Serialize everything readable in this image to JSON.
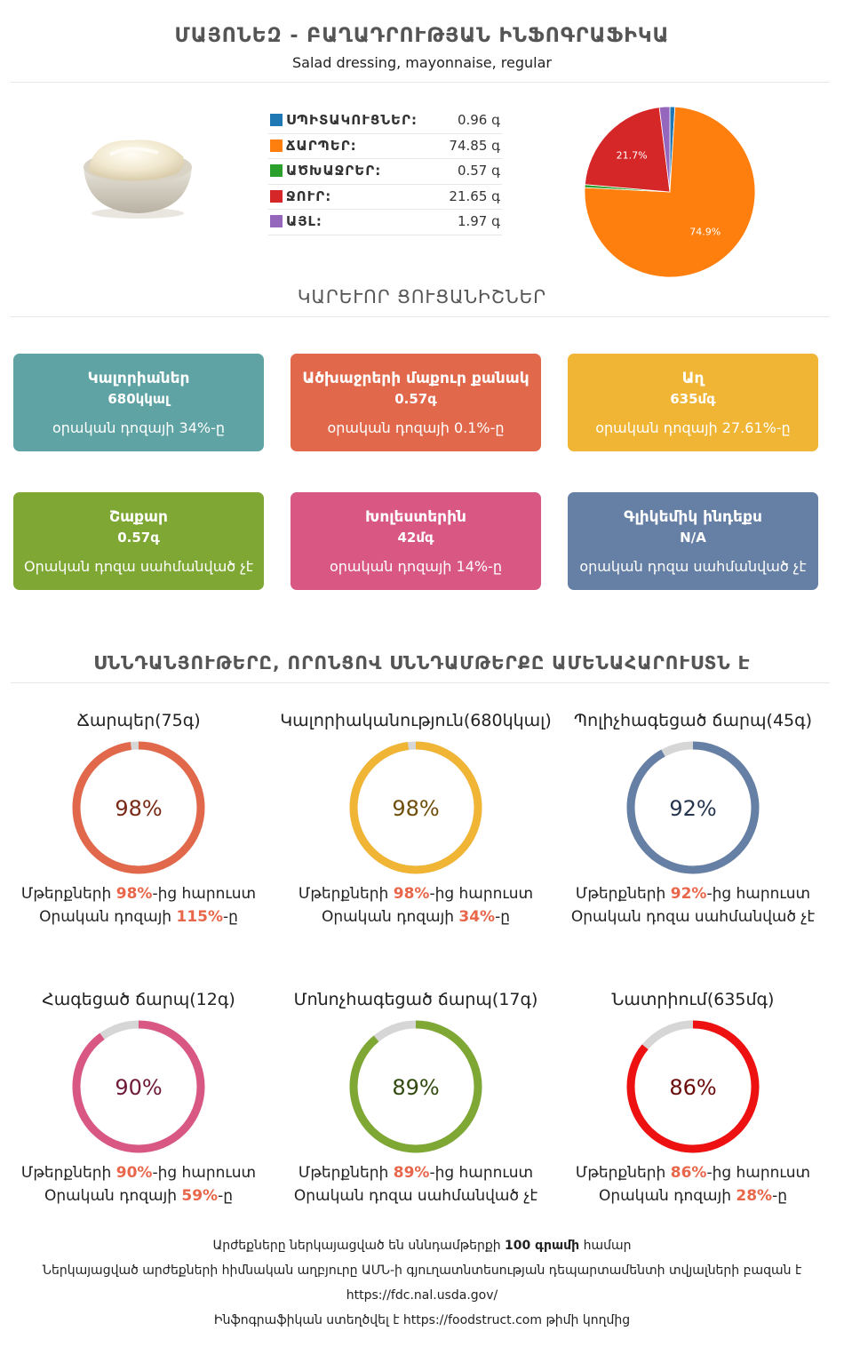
{
  "header": {
    "title": "ՄԱՅՈՆԵԶ - ԲԱՂԱԴՐՈՒԹՅԱՆ ԻՆՖՈԳՐԱՖԻԿԱ",
    "subtitle": "Salad dressing, mayonnaise, regular"
  },
  "macros": [
    {
      "label": "ՍՊԻՏԱԿՈՒՑՆԵՐ:",
      "value": "0.96 գ",
      "color": "#1f77b4"
    },
    {
      "label": "ՃԱՐՊԵՐ:",
      "value": "74.85 գ",
      "color": "#ff7f0e"
    },
    {
      "label": "ԱԾԽԱՋՐԵՐ:",
      "value": "0.57 գ",
      "color": "#2ca02c"
    },
    {
      "label": "ՋՈՒՐ:",
      "value": "21.65 գ",
      "color": "#d62728"
    },
    {
      "label": "ԱՅԼ:",
      "value": "1.97 գ",
      "color": "#9467bd"
    }
  ],
  "chart_data": {
    "type": "pie",
    "slices": [
      {
        "label": "ՍՊԻՏԱԿՈՒՑՆԵՐ",
        "value": 0.96,
        "color": "#1f77b4"
      },
      {
        "label": "ՃԱՐՊԵՐ",
        "value": 74.85,
        "color": "#ff7f0e",
        "display": "74.9%"
      },
      {
        "label": "ԱԾԽԱՋՐԵՐ",
        "value": 0.57,
        "color": "#2ca02c"
      },
      {
        "label": "ՋՈՒՐ",
        "value": 21.65,
        "color": "#d62728",
        "display": "21.7%"
      },
      {
        "label": "ԱՅԼ",
        "value": 1.97,
        "color": "#9467bd"
      }
    ]
  },
  "key_section_title": "ԿԱՐԵՒՈՐ ՑՈՒՑԱՆԻՇՆԵՐ",
  "cards": [
    {
      "title": "Կալորիաներ",
      "amount": "680կկալ",
      "note": "օրական դոզայի 34%-ը",
      "color": "#5fa3a4"
    },
    {
      "title": "Ածխաջրերի մաքուր քանակ",
      "amount": "0.57գ",
      "note": "օրական դոզայի 0.1%-ը",
      "color": "#e1684a"
    },
    {
      "title": "Աղ",
      "amount": "635մգ",
      "note": "օրական դոզայի 27.61%-ը",
      "color": "#f0b535"
    },
    {
      "title": "Շաքար",
      "amount": "0.57գ",
      "note": "Օրական դոզա սահմանված չէ",
      "color": "#7ea733"
    },
    {
      "title": "Խոլեստերին",
      "amount": "42մգ",
      "note": "օրական դոզայի 14%-ը",
      "color": "#d95883"
    },
    {
      "title": "Գլիկեմիկ ինդեքս",
      "amount": "N/A",
      "note": "օրական դոզա սահմանված չէ",
      "color": "#657fa5"
    }
  ],
  "rings_section_title": "ՍՆՆԴԱՆՅՈՒԹԵՐԸ, ՈՐՈՆՑՈՎ ՍՆՆԴԱՄԹԵՐՔԸ ԱՄԵՆԱՀԱՐՈՒՍՏՆ Է",
  "rings": [
    {
      "title": "Ճարպեր(75գ)",
      "percent": 98,
      "pct_label": "98%",
      "color": "#e1684a",
      "text_color": "#7a2a17",
      "l1_pre": "Մթերքների ",
      "l1_hl": "98%",
      "l1_post": "-ից հարուստ",
      "l2_pre": "Օրական դոզայի ",
      "l2_hl": "115%",
      "l2_post": "-ը"
    },
    {
      "title": "Կալորիականություն(680կկալ)",
      "percent": 98,
      "pct_label": "98%",
      "color": "#f0b535",
      "text_color": "#6d4e0a",
      "l1_pre": "Մթերքների ",
      "l1_hl": "98%",
      "l1_post": "-ից հարուստ",
      "l2_pre": "Օրական դոզայի ",
      "l2_hl": "34%",
      "l2_post": "-ը"
    },
    {
      "title": "Պոլիչհագեցած ճարպ(45գ)",
      "percent": 92,
      "pct_label": "92%",
      "color": "#657fa5",
      "text_color": "#26354f",
      "l1_pre": "Մթերքների ",
      "l1_hl": "92%",
      "l1_post": "-ից հարուստ",
      "l2_pre": "Օրական դոզա սահմանված չէ",
      "l2_hl": "",
      "l2_post": ""
    },
    {
      "title": "Հագեցած ճարպ(12գ)",
      "percent": 90,
      "pct_label": "90%",
      "color": "#d95883",
      "text_color": "#6e1a38",
      "l1_pre": "Մթերքների ",
      "l1_hl": "90%",
      "l1_post": "-ից հարուստ",
      "l2_pre": "Օրական դոզայի ",
      "l2_hl": "59%",
      "l2_post": "-ը"
    },
    {
      "title": "Մոնոչհագեցած ճարպ(17գ)",
      "percent": 89,
      "pct_label": "89%",
      "color": "#7ea733",
      "text_color": "#324a0f",
      "l1_pre": "Մթերքների ",
      "l1_hl": "89%",
      "l1_post": "-ից հարուստ",
      "l2_pre": "Օրական դոզա սահմանված չէ",
      "l2_hl": "",
      "l2_post": ""
    },
    {
      "title": "Նատրիում(635մգ)",
      "percent": 86,
      "pct_label": "86%",
      "color": "#ee1111",
      "text_color": "#6b0c0c",
      "l1_pre": "Մթերքների ",
      "l1_hl": "86%",
      "l1_post": "-ից հարուստ",
      "l2_pre": "Օրական դոզայի ",
      "l2_hl": "28%",
      "l2_post": "-ը"
    }
  ],
  "footer": {
    "line1_pre": "Արժեքները ներկայացված են սննդամթերքի ",
    "line1_bold": "100 գրամի",
    "line1_post": " համար",
    "line2": "Ներկայացված արժեքների հիմնական աղբյուրը ԱՄՆ-ի գյուղատնտեսության դեպարտամենտի տվյալների բազան է",
    "line3": "https://fdc.nal.usda.gov/",
    "line4_pre": "Ինֆոգրաֆիկան ստեղծվել է ",
    "line4_link": "https://foodstruct.com",
    "line4_post": " թիմի կողմից"
  }
}
